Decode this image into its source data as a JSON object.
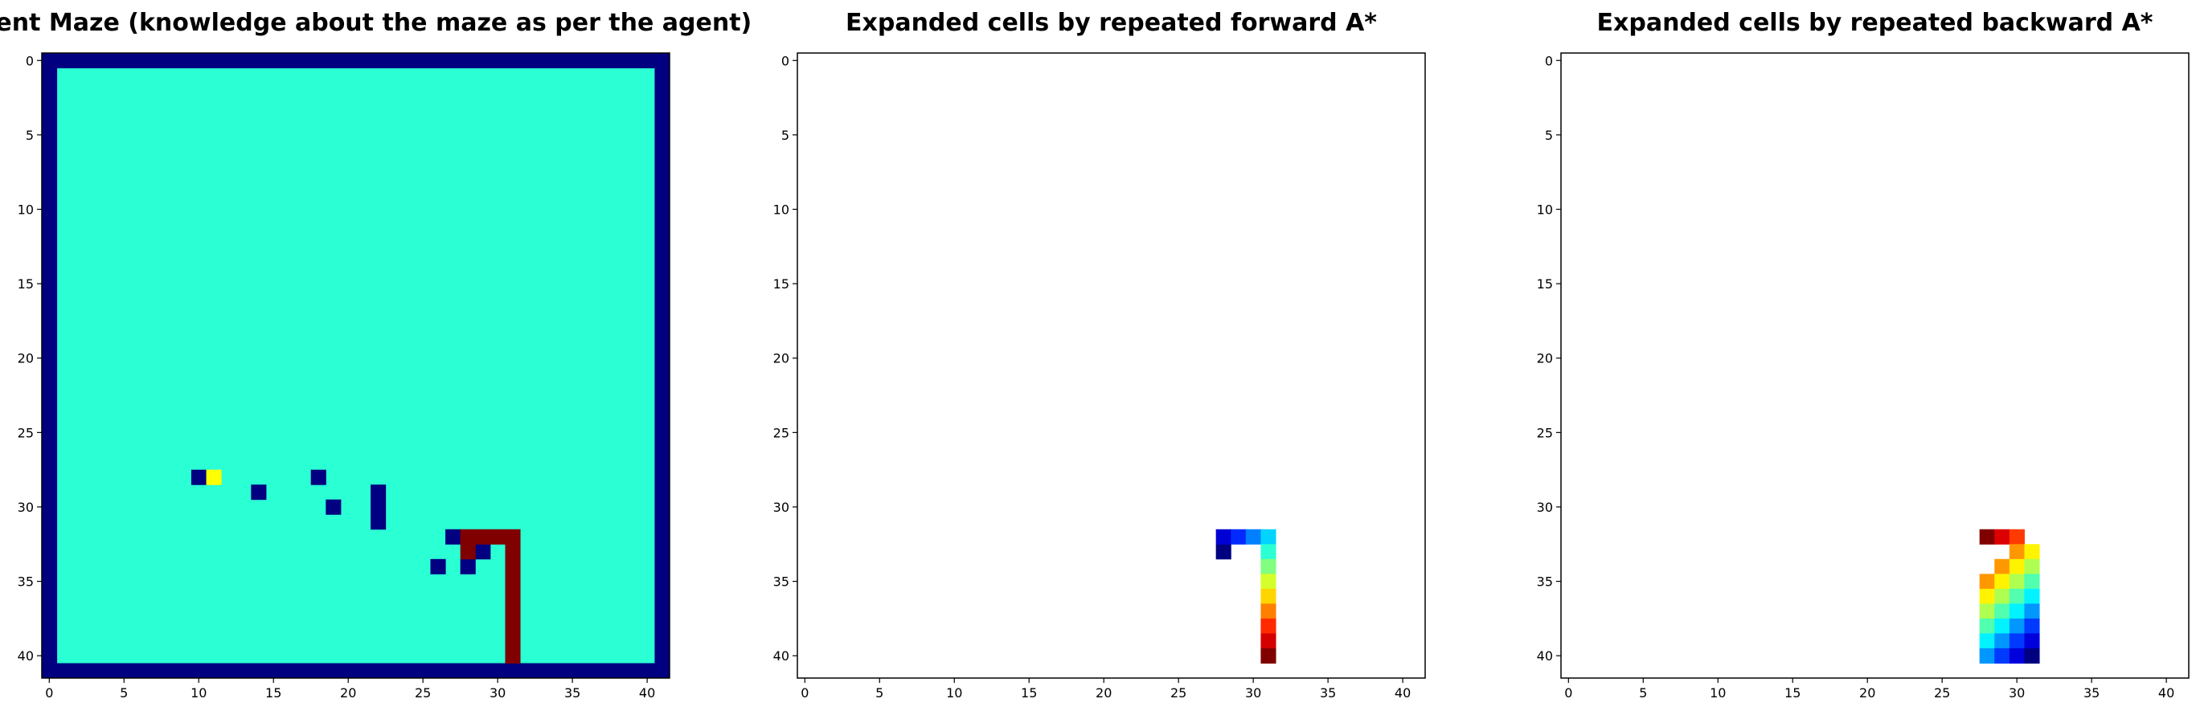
{
  "chart_data": [
    {
      "type": "heatmap",
      "title": "Agent Maze (knowledge about the maze as per the agent)",
      "colormap": "jet",
      "vmin": 0,
      "vmax": 12,
      "xlim": [
        -0.5,
        41.5
      ],
      "ylim": [
        41.5,
        -0.5
      ],
      "xticks": [
        0,
        5,
        10,
        15,
        20,
        25,
        30,
        35,
        40
      ],
      "yticks": [
        0,
        5,
        10,
        15,
        20,
        25,
        30,
        35,
        40
      ],
      "cells": [
        {
          "rows": [
            1,
            40
          ],
          "cols": [
            1,
            40
          ],
          "value": 5
        },
        {
          "rows": [
            0,
            0
          ],
          "cols": [
            0,
            41
          ],
          "value": 0
        },
        {
          "rows": [
            41,
            41
          ],
          "cols": [
            0,
            41
          ],
          "value": 0
        },
        {
          "rows": [
            1,
            40
          ],
          "cols": [
            0,
            0
          ],
          "value": 0
        },
        {
          "rows": [
            1,
            40
          ],
          "cols": [
            41,
            41
          ],
          "value": 0
        },
        {
          "rows": [
            28,
            28
          ],
          "cols": [
            10,
            10
          ],
          "value": 0
        },
        {
          "rows": [
            28,
            28
          ],
          "cols": [
            11,
            11
          ],
          "value": 7.5
        },
        {
          "rows": [
            29,
            29
          ],
          "cols": [
            14,
            14
          ],
          "value": 0
        },
        {
          "rows": [
            28,
            28
          ],
          "cols": [
            18,
            18
          ],
          "value": 0
        },
        {
          "rows": [
            30,
            30
          ],
          "cols": [
            19,
            19
          ],
          "value": 0
        },
        {
          "rows": [
            29,
            31
          ],
          "cols": [
            22,
            22
          ],
          "value": 0
        },
        {
          "rows": [
            32,
            32
          ],
          "cols": [
            27,
            27
          ],
          "value": 0
        },
        {
          "rows": [
            33,
            33
          ],
          "cols": [
            29,
            29
          ],
          "value": 0
        },
        {
          "rows": [
            34,
            34
          ],
          "cols": [
            28,
            28
          ],
          "value": 0
        },
        {
          "rows": [
            34,
            34
          ],
          "cols": [
            26,
            26
          ],
          "value": 0
        },
        {
          "rows": [
            32,
            32
          ],
          "cols": [
            28,
            31
          ],
          "value": 12
        },
        {
          "rows": [
            33,
            40
          ],
          "cols": [
            31,
            31
          ],
          "value": 12
        },
        {
          "rows": [
            33,
            33
          ],
          "cols": [
            28,
            28
          ],
          "value": 12
        }
      ]
    },
    {
      "type": "heatmap",
      "title": "Expanded cells by repeated forward A*",
      "colormap": "jet",
      "vmin": 1,
      "vmax": 13,
      "xlim": [
        -0.5,
        41.5
      ],
      "ylim": [
        41.5,
        -0.5
      ],
      "xticks": [
        0,
        5,
        10,
        15,
        20,
        25,
        30,
        35,
        40
      ],
      "yticks": [
        0,
        5,
        10,
        15,
        20,
        25,
        30,
        35,
        40
      ],
      "cells": [
        {
          "rows": [
            33,
            33
          ],
          "cols": [
            28,
            28
          ],
          "value": 1
        },
        {
          "rows": [
            32,
            32
          ],
          "cols": [
            28,
            28
          ],
          "value": 2
        },
        {
          "rows": [
            32,
            32
          ],
          "cols": [
            29,
            29
          ],
          "value": 3
        },
        {
          "rows": [
            32,
            32
          ],
          "cols": [
            30,
            30
          ],
          "value": 4
        },
        {
          "rows": [
            32,
            32
          ],
          "cols": [
            31,
            31
          ],
          "value": 5
        },
        {
          "rows": [
            33,
            33
          ],
          "cols": [
            31,
            31
          ],
          "value": 6
        },
        {
          "rows": [
            34,
            34
          ],
          "cols": [
            31,
            31
          ],
          "value": 7
        },
        {
          "rows": [
            35,
            35
          ],
          "cols": [
            31,
            31
          ],
          "value": 8
        },
        {
          "rows": [
            36,
            36
          ],
          "cols": [
            31,
            31
          ],
          "value": 9
        },
        {
          "rows": [
            37,
            37
          ],
          "cols": [
            31,
            31
          ],
          "value": 10
        },
        {
          "rows": [
            38,
            38
          ],
          "cols": [
            31,
            31
          ],
          "value": 11
        },
        {
          "rows": [
            39,
            39
          ],
          "cols": [
            31,
            31
          ],
          "value": 12
        },
        {
          "rows": [
            40,
            40
          ],
          "cols": [
            31,
            31
          ],
          "value": 13
        }
      ]
    },
    {
      "type": "heatmap",
      "title": "Expanded cells by repeated backward A*",
      "colormap": "jet",
      "vmin": 0,
      "vmax": 11,
      "xlim": [
        -0.5,
        41.5
      ],
      "ylim": [
        41.5,
        -0.5
      ],
      "xticks": [
        0,
        5,
        10,
        15,
        20,
        25,
        30,
        35,
        40
      ],
      "yticks": [
        0,
        5,
        10,
        15,
        20,
        25,
        30,
        35,
        40
      ],
      "cells": [
        {
          "rows": [
            32,
            32
          ],
          "cols": [
            28,
            28
          ],
          "value": 11
        },
        {
          "rows": [
            32,
            32
          ],
          "cols": [
            29,
            29
          ],
          "value": 10
        },
        {
          "rows": [
            32,
            32
          ],
          "cols": [
            30,
            30
          ],
          "value": 9
        },
        {
          "rows": [
            33,
            33
          ],
          "cols": [
            30,
            30
          ],
          "value": 8
        },
        {
          "rows": [
            33,
            33
          ],
          "cols": [
            31,
            31
          ],
          "value": 7
        },
        {
          "rows": [
            34,
            34
          ],
          "cols": [
            29,
            29
          ],
          "value": 8
        },
        {
          "rows": [
            34,
            34
          ],
          "cols": [
            30,
            30
          ],
          "value": 7
        },
        {
          "rows": [
            34,
            34
          ],
          "cols": [
            31,
            31
          ],
          "value": 6
        },
        {
          "rows": [
            35,
            35
          ],
          "cols": [
            28,
            28
          ],
          "value": 8
        },
        {
          "rows": [
            35,
            35
          ],
          "cols": [
            29,
            29
          ],
          "value": 7
        },
        {
          "rows": [
            35,
            35
          ],
          "cols": [
            30,
            30
          ],
          "value": 6
        },
        {
          "rows": [
            35,
            35
          ],
          "cols": [
            31,
            31
          ],
          "value": 5
        },
        {
          "rows": [
            36,
            36
          ],
          "cols": [
            28,
            28
          ],
          "value": 7
        },
        {
          "rows": [
            36,
            36
          ],
          "cols": [
            29,
            29
          ],
          "value": 6
        },
        {
          "rows": [
            36,
            36
          ],
          "cols": [
            30,
            30
          ],
          "value": 5
        },
        {
          "rows": [
            36,
            36
          ],
          "cols": [
            31,
            31
          ],
          "value": 4
        },
        {
          "rows": [
            37,
            37
          ],
          "cols": [
            28,
            28
          ],
          "value": 6
        },
        {
          "rows": [
            37,
            37
          ],
          "cols": [
            29,
            29
          ],
          "value": 5
        },
        {
          "rows": [
            37,
            37
          ],
          "cols": [
            30,
            30
          ],
          "value": 4
        },
        {
          "rows": [
            37,
            37
          ],
          "cols": [
            31,
            31
          ],
          "value": 3
        },
        {
          "rows": [
            38,
            38
          ],
          "cols": [
            28,
            28
          ],
          "value": 5
        },
        {
          "rows": [
            38,
            38
          ],
          "cols": [
            29,
            29
          ],
          "value": 4
        },
        {
          "rows": [
            38,
            38
          ],
          "cols": [
            30,
            30
          ],
          "value": 3
        },
        {
          "rows": [
            38,
            38
          ],
          "cols": [
            31,
            31
          ],
          "value": 2
        },
        {
          "rows": [
            39,
            39
          ],
          "cols": [
            28,
            28
          ],
          "value": 4
        },
        {
          "rows": [
            39,
            39
          ],
          "cols": [
            29,
            29
          ],
          "value": 3
        },
        {
          "rows": [
            39,
            39
          ],
          "cols": [
            30,
            30
          ],
          "value": 2
        },
        {
          "rows": [
            39,
            39
          ],
          "cols": [
            31,
            31
          ],
          "value": 1
        },
        {
          "rows": [
            40,
            40
          ],
          "cols": [
            28,
            28
          ],
          "value": 3
        },
        {
          "rows": [
            40,
            40
          ],
          "cols": [
            29,
            29
          ],
          "value": 2
        },
        {
          "rows": [
            40,
            40
          ],
          "cols": [
            30,
            30
          ],
          "value": 1
        },
        {
          "rows": [
            40,
            40
          ],
          "cols": [
            31,
            31
          ],
          "value": 0
        }
      ]
    }
  ]
}
